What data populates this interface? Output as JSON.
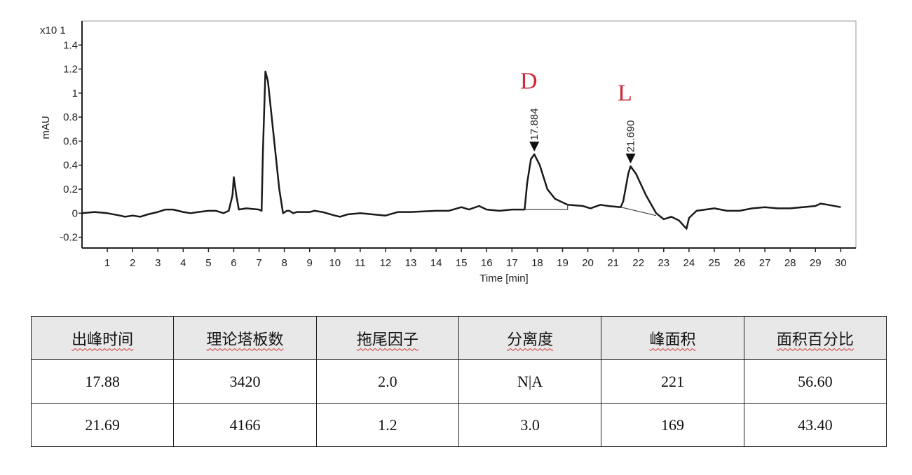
{
  "chart_data": {
    "type": "line",
    "xlabel": "Time [min]",
    "ylabel": "mAU",
    "y_multiplier": "x10 1",
    "xlim": [
      0,
      30.6
    ],
    "ylim": [
      -0.29,
      1.6
    ],
    "x_ticks": [
      1,
      2,
      3,
      4,
      5,
      6,
      7,
      8,
      9,
      10,
      11,
      12,
      13,
      14,
      15,
      16,
      17,
      18,
      19,
      20,
      21,
      22,
      23,
      24,
      25,
      26,
      27,
      28,
      29,
      30
    ],
    "y_ticks": [
      -0.2,
      0,
      0.2,
      0.4,
      0.6,
      0.8,
      1,
      1.2,
      1.4
    ],
    "y_tick_labels": [
      "-0.2",
      "0",
      "0.2",
      "0.4",
      "0.6",
      "0.8",
      "1",
      "1.2",
      "1.4"
    ],
    "grid": false,
    "line_color": "#1a1a1a",
    "series": [
      {
        "x": [
          0,
          0.5,
          1,
          1.5,
          1.7,
          2,
          2.3,
          2.6,
          3,
          3.3,
          3.6,
          4,
          4.3,
          4.6,
          5,
          5.3,
          5.6,
          5.8,
          5.95,
          6.0,
          6.1,
          6.2,
          6.5,
          7.0,
          7.1,
          7.15,
          7.25,
          7.35,
          7.5,
          7.8,
          7.95,
          8.1,
          8.2,
          8.35,
          8.5,
          9,
          9.2,
          9.5,
          10,
          10.2,
          10.5,
          11,
          11.5,
          12,
          12.5,
          13,
          14,
          14.5,
          15,
          15.3,
          15.7,
          16,
          16.5,
          17,
          17.5,
          17.6,
          17.75,
          17.884,
          18.1,
          18.4,
          18.7,
          19,
          19.2,
          19.8,
          20.1,
          20.5,
          20.8,
          21.3,
          21.4,
          21.6,
          21.69,
          21.9,
          22.3,
          22.7,
          23,
          23.3,
          23.6,
          23.9,
          24.0,
          24.3,
          25,
          25.5,
          26,
          26.5,
          27,
          27.5,
          28,
          28.5,
          29,
          29.2,
          29.5,
          30
        ],
        "y": [
          0,
          0.01,
          0,
          -0.02,
          -0.03,
          -0.02,
          -0.03,
          -0.01,
          0.01,
          0.03,
          0.03,
          0.01,
          0,
          0.01,
          0.02,
          0.02,
          0,
          0.02,
          0.15,
          0.3,
          0.15,
          0.03,
          0.04,
          0.03,
          0.02,
          0.5,
          1.18,
          1.1,
          0.8,
          0.2,
          0,
          0.02,
          0.02,
          0,
          0.01,
          0.01,
          0.02,
          0.01,
          -0.02,
          -0.03,
          -0.01,
          0,
          -0.01,
          -0.02,
          0.01,
          0.01,
          0.02,
          0.02,
          0.05,
          0.03,
          0.06,
          0.03,
          0.02,
          0.03,
          0.03,
          0.25,
          0.45,
          0.49,
          0.4,
          0.2,
          0.12,
          0.09,
          0.07,
          0.06,
          0.04,
          0.07,
          0.06,
          0.05,
          0.1,
          0.33,
          0.39,
          0.33,
          0.15,
          0,
          -0.05,
          -0.03,
          -0.06,
          -0.13,
          -0.04,
          0.02,
          0.04,
          0.02,
          0.02,
          0.04,
          0.05,
          0.04,
          0.04,
          0.05,
          0.06,
          0.08,
          0.07,
          0.05
        ]
      }
    ],
    "peaks": [
      {
        "rt": 17.884,
        "label": "17.884",
        "name": "D",
        "apex": 0.49,
        "baseline": [
          [
            17.5,
            0.03
          ],
          [
            19.2,
            0.03
          ],
          [
            19.2,
            0.07
          ]
        ]
      },
      {
        "rt": 21.69,
        "label": "21.690",
        "name": "L",
        "apex": 0.39,
        "baseline": [
          [
            21.3,
            0.05
          ],
          [
            22.7,
            -0.02
          ]
        ]
      }
    ],
    "peak_name_color": "#d0283a"
  },
  "table": {
    "headers": [
      "出峰时间",
      "理论塔板数",
      "拖尾因子",
      "分离度",
      "峰面积",
      "面积百分比"
    ],
    "rows": [
      [
        "17.88",
        "3420",
        "2.0",
        "N|A",
        "221",
        "56.60"
      ],
      [
        "21.69",
        "4166",
        "1.2",
        "3.0",
        "169",
        "43.40"
      ]
    ]
  }
}
